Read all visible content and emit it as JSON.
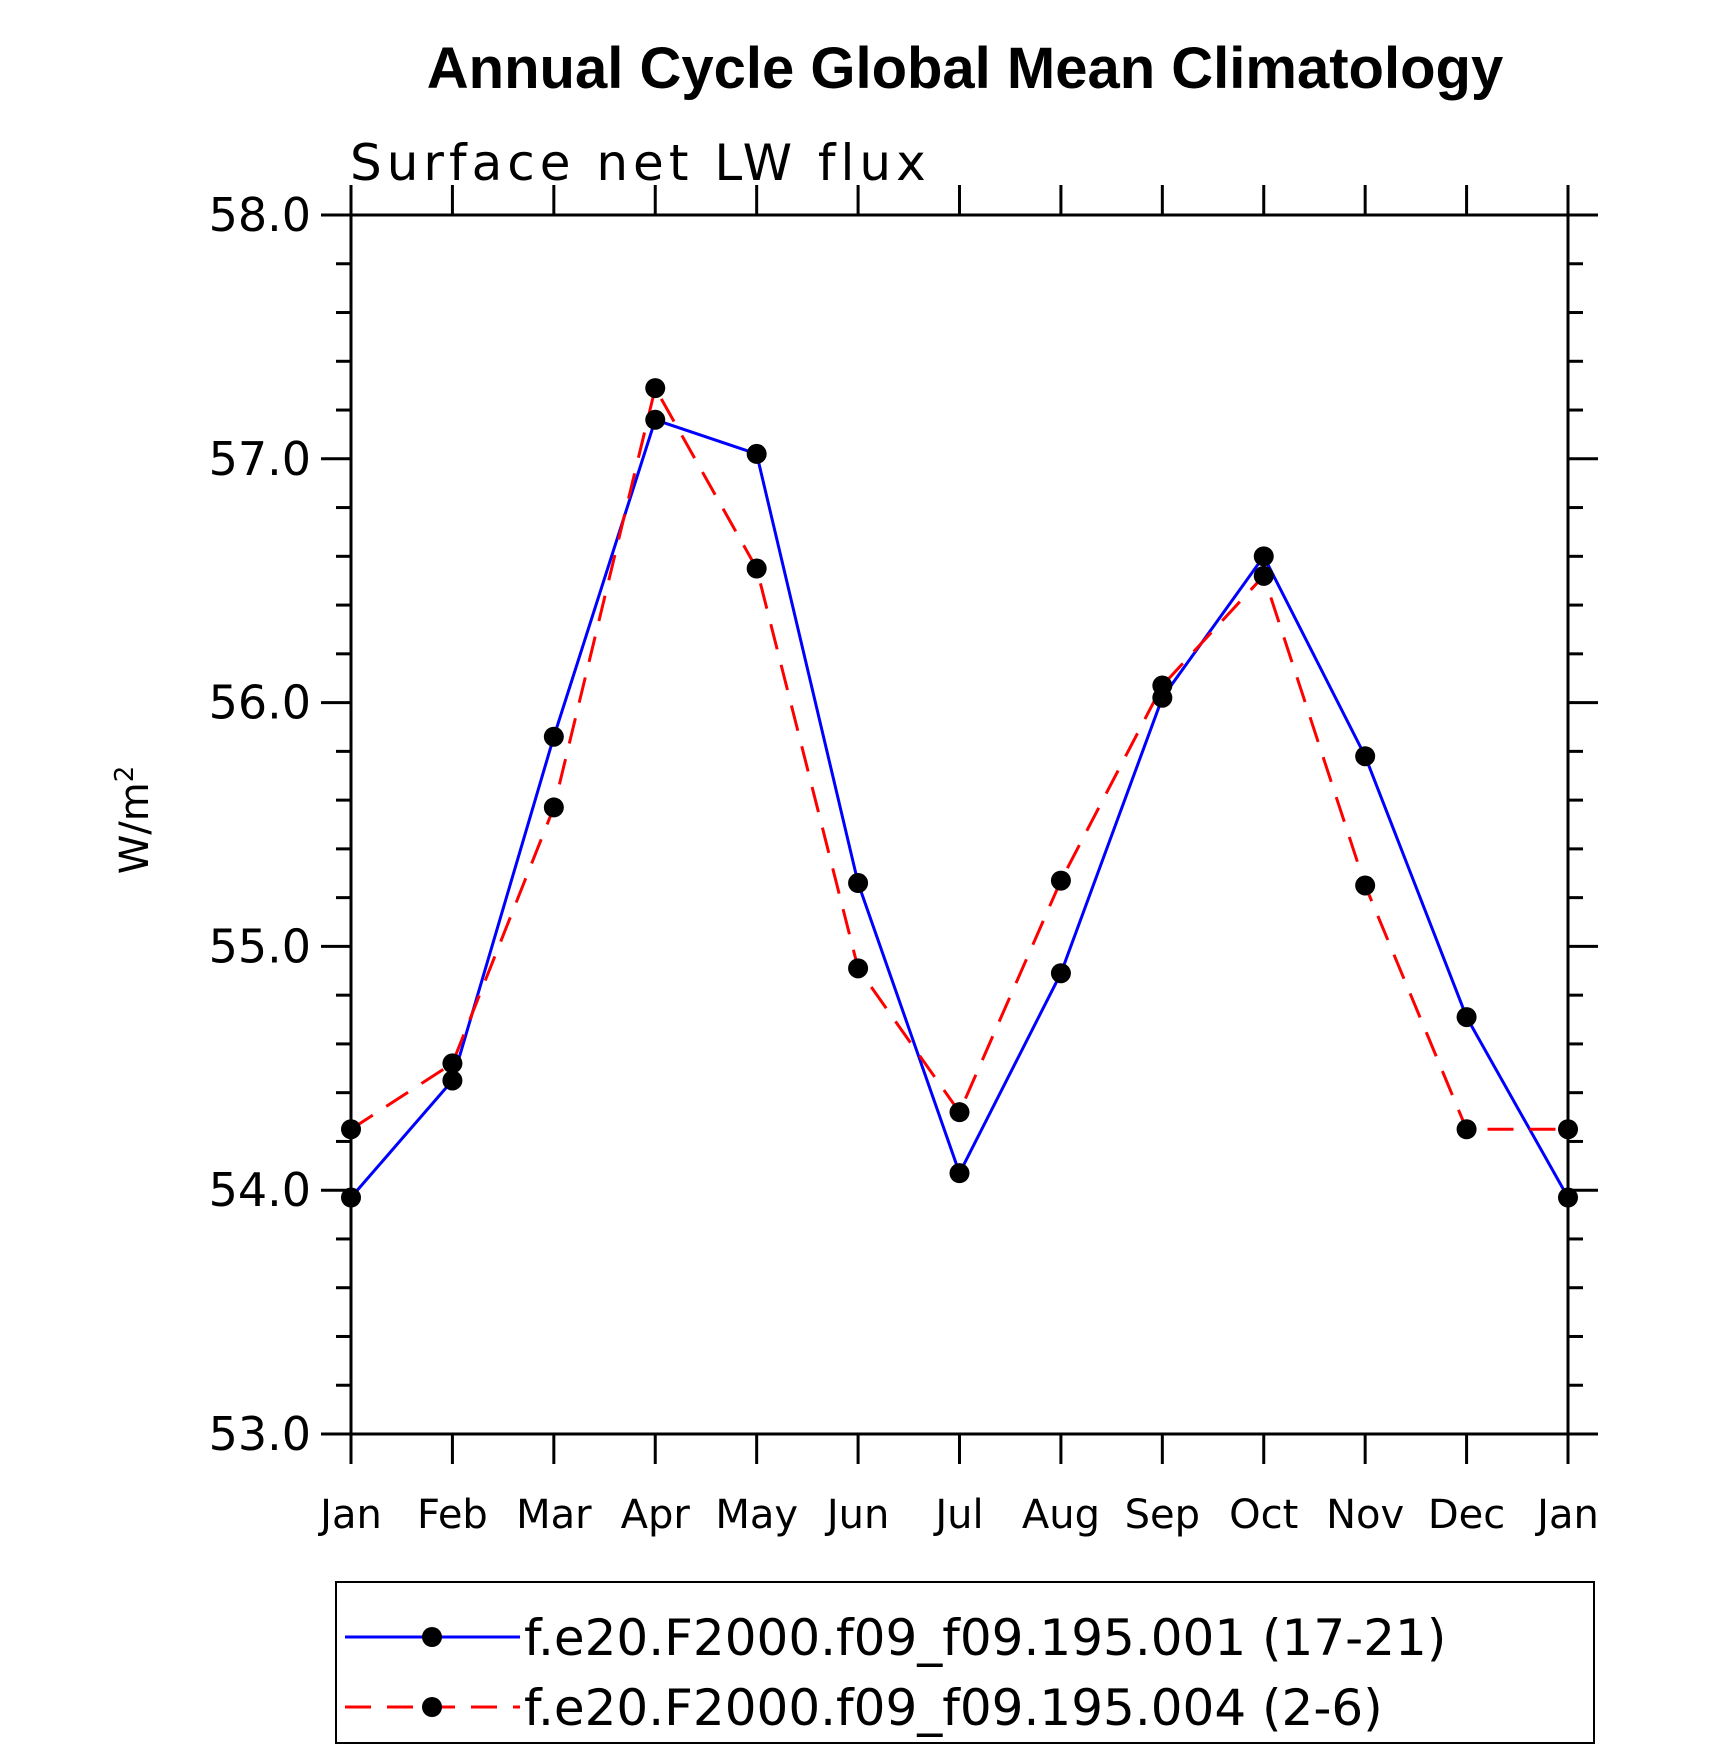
{
  "chart_data": {
    "type": "line",
    "title": "Annual Cycle Global Mean Climatology",
    "subtitle": "Surface net LW flux",
    "xlabel": "",
    "ylabel": "W/m",
    "ylabel_superscript": "2",
    "categories": [
      "Jan",
      "Feb",
      "Mar",
      "Apr",
      "May",
      "Jun",
      "Jul",
      "Aug",
      "Sep",
      "Oct",
      "Nov",
      "Dec",
      "Jan"
    ],
    "ylim": [
      53.0,
      58.0
    ],
    "yticks": [
      53.0,
      54.0,
      55.0,
      56.0,
      57.0,
      58.0
    ],
    "ytick_labels": [
      "53.0",
      "54.0",
      "55.0",
      "56.0",
      "57.0",
      "58.0"
    ],
    "grid": false,
    "legend_position": "bottom",
    "series": [
      {
        "name": "f.e20.F2000.f09_f09.195.001 (17-21)",
        "color": "#0000ff",
        "dash": "solid",
        "marker": "circle",
        "values": [
          53.97,
          54.45,
          55.86,
          57.16,
          57.02,
          55.26,
          54.07,
          54.89,
          56.02,
          56.6,
          55.78,
          54.71,
          53.97
        ]
      },
      {
        "name": "f.e20.F2000.f09_f09.195.004 (2-6)",
        "color": "#ff0000",
        "dash": "dashed",
        "marker": "circle",
        "values": [
          54.25,
          54.52,
          55.57,
          57.29,
          56.55,
          54.91,
          54.32,
          55.27,
          56.07,
          56.52,
          55.25,
          54.25,
          54.25
        ]
      }
    ]
  }
}
